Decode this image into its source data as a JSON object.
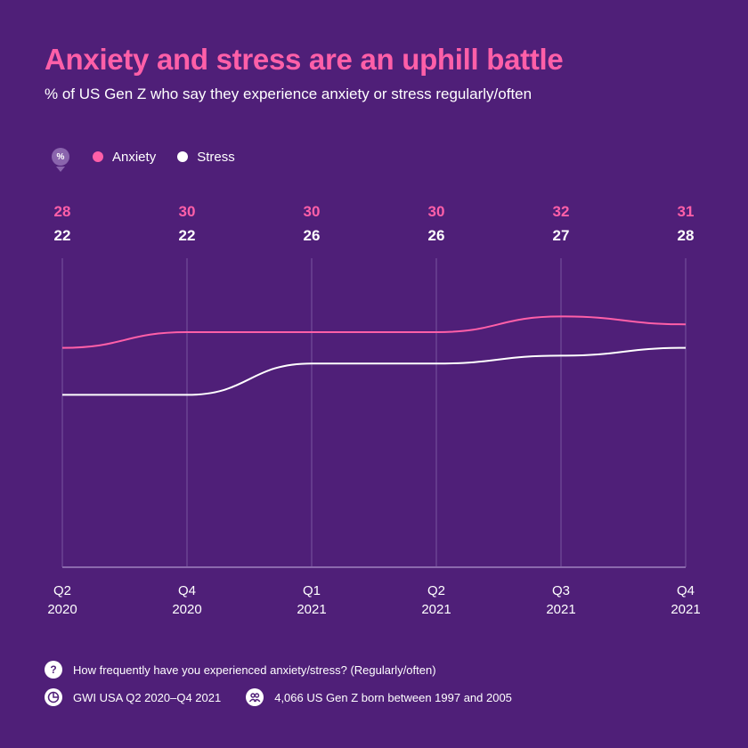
{
  "header": {
    "title": "Anxiety and stress are an uphill battle",
    "subtitle": "% of US Gen Z who say they experience anxiety or stress regularly/often"
  },
  "legend": {
    "unit_badge": "%",
    "items": [
      {
        "label": "Anxiety",
        "color": "#ff5fa8"
      },
      {
        "label": "Stress",
        "color": "#ffffff"
      }
    ]
  },
  "chart_data": {
    "type": "line",
    "categories": [
      {
        "line1": "Q2",
        "line2": "2020"
      },
      {
        "line1": "Q4",
        "line2": "2020"
      },
      {
        "line1": "Q1",
        "line2": "2021"
      },
      {
        "line1": "Q2",
        "line2": "2021"
      },
      {
        "line1": "Q3",
        "line2": "2021"
      },
      {
        "line1": "Q4",
        "line2": "2021"
      }
    ],
    "series": [
      {
        "name": "Anxiety",
        "color": "#ff5fa8",
        "values": [
          28,
          30,
          30,
          30,
          32,
          31
        ]
      },
      {
        "name": "Stress",
        "color": "#ffffff",
        "values": [
          22,
          22,
          26,
          26,
          27,
          28
        ]
      }
    ],
    "ylim": [
      0,
      50
    ],
    "grid": "vertical",
    "legend_position": "top-left",
    "title": "",
    "xlabel": "",
    "ylabel": ""
  },
  "footer": {
    "question_icon": "question-icon",
    "question": "How frequently have you experienced anxiety/stress? (Regularly/often)",
    "source_icon": "globe-icon",
    "source": "GWI USA Q2 2020–Q4 2021",
    "sample_icon": "people-icon",
    "sample": "4,066 US Gen Z born between 1997 and 2005"
  }
}
